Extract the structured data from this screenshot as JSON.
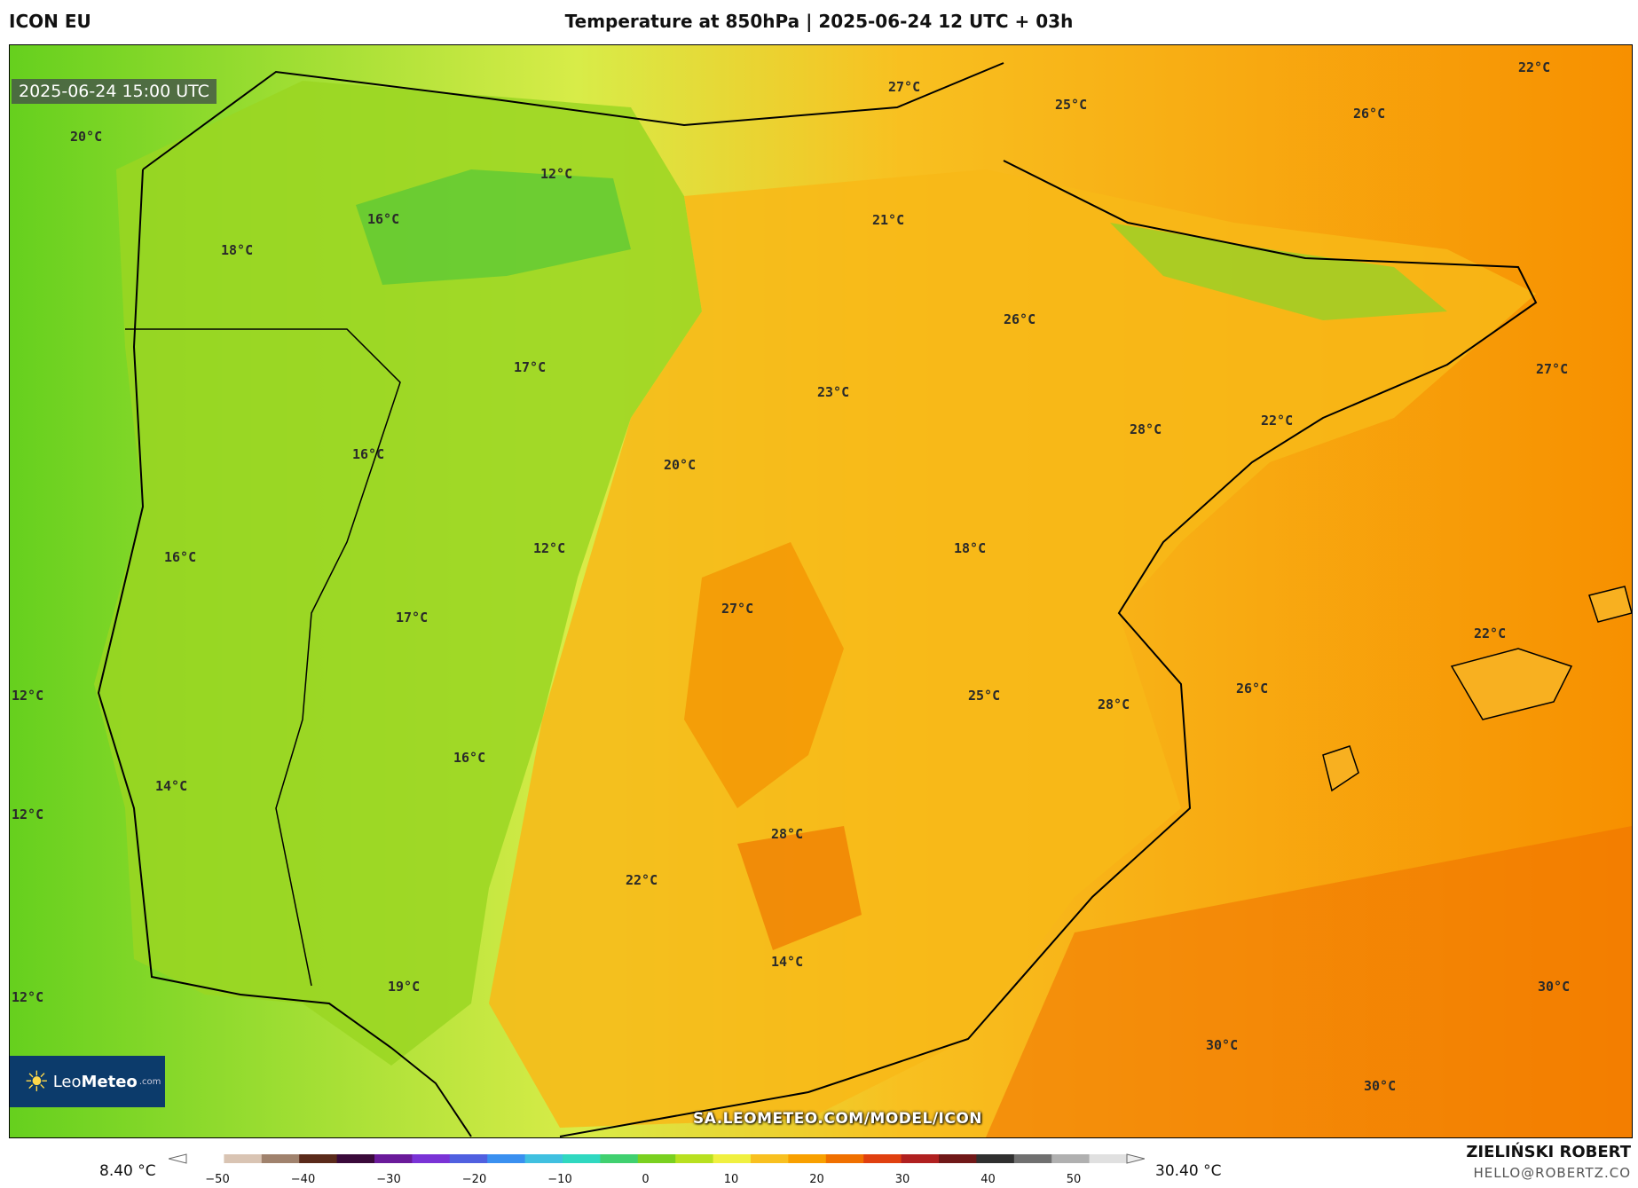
{
  "header": {
    "model": "ICON EU",
    "title": "Temperature at 850hPa | 2025-06-24 12 UTC + 03h"
  },
  "map": {
    "timestamp": "2025-06-24 15:00 UTC",
    "labels": [
      "27°C",
      "25°C",
      "22°C",
      "26°C",
      "20°C",
      "12°C",
      "21°C",
      "16°C",
      "18°C",
      "26°C",
      "17°C",
      "23°C",
      "27°C",
      "28°C",
      "22°C",
      "16°C",
      "20°C",
      "18°C",
      "12°C",
      "16°C",
      "27°C",
      "17°C",
      "22°C",
      "12°C",
      "25°C",
      "28°C",
      "26°C",
      "16°C",
      "14°C",
      "12°C",
      "28°C",
      "22°C",
      "12°C",
      "14°C",
      "19°C",
      "30°C",
      "30°C",
      "30°C"
    ],
    "logo": {
      "brand_plain": "Leo",
      "brand_bold": "Meteo",
      "domain": ".com"
    },
    "watermark": "SA.LEOMETEO.COM/MODEL/ICON"
  },
  "colorbar": {
    "min_label": "8.40 °C",
    "max_label": "30.40 °C",
    "ticks": [
      "−50",
      "−40",
      "−30",
      "−20",
      "−10",
      "0",
      "10",
      "20",
      "30",
      "40",
      "50"
    ],
    "colors": [
      "#ffffff",
      "#d9c4b3",
      "#a0826d",
      "#5a2a1a",
      "#3a0a3a",
      "#6a1a9a",
      "#7a33d6",
      "#5060e0",
      "#3a90f0",
      "#40c0e0",
      "#30d8c0",
      "#40d070",
      "#7ad020",
      "#b8e020",
      "#f0f040",
      "#f8c020",
      "#f8a000",
      "#f07000",
      "#e04010",
      "#b02020",
      "#701818",
      "#303030",
      "#707070",
      "#b0b0b0",
      "#e0e0e0"
    ]
  },
  "footer": {
    "author": "ZIELIŃSKI ROBERT",
    "email": "HELLO@ROBERTZ.CO"
  }
}
